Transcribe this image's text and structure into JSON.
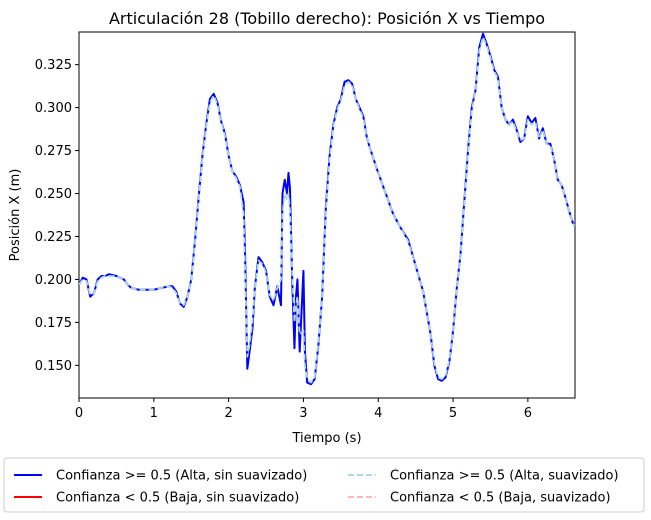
{
  "chart_data": {
    "type": "line",
    "title": "Articulación 28 (Tobillo derecho): Posición X vs Tiempo",
    "xlabel": "Tiempo (s)",
    "ylabel": "Posición X (m)",
    "xlim": [
      0,
      6.63
    ],
    "ylim": [
      0.131,
      0.344
    ],
    "xticks": [
      0,
      1,
      2,
      3,
      4,
      5,
      6
    ],
    "xtick_labels": [
      "0",
      "1",
      "2",
      "3",
      "4",
      "5",
      "6"
    ],
    "yticks": [
      0.15,
      0.175,
      0.2,
      0.225,
      0.25,
      0.275,
      0.3,
      0.325
    ],
    "ytick_labels": [
      "0.150",
      "0.175",
      "0.200",
      "0.225",
      "0.250",
      "0.275",
      "0.300",
      "0.325"
    ],
    "grid": false,
    "legend_position": "bottom-center",
    "legend": [
      {
        "label": "Confianza >= 0.5 (Alta, sin suavizado)",
        "color": "#0000ff",
        "style": "solid"
      },
      {
        "label": "Confianza < 0.5 (Baja, sin suavizado)",
        "color": "#ff0000",
        "style": "solid"
      },
      {
        "label": "Confianza >= 0.5 (Alta, suavizado)",
        "color": "#add8e6",
        "style": "dashed"
      },
      {
        "label": "Confianza < 0.5 (Baja, suavizado)",
        "color": "#ffb6c1",
        "style": "dashed"
      }
    ],
    "series": [
      {
        "name": "Confianza >= 0.5 (Alta, sin suavizado)",
        "color": "#0000ff",
        "style": "solid",
        "x": [
          0,
          0.05,
          0.1,
          0.15,
          0.2,
          0.25,
          0.3,
          0.35,
          0.4,
          0.5,
          0.6,
          0.65,
          0.7,
          0.8,
          0.9,
          1.0,
          1.1,
          1.2,
          1.25,
          1.3,
          1.35,
          1.4,
          1.45,
          1.5,
          1.55,
          1.6,
          1.65,
          1.7,
          1.75,
          1.8,
          1.85,
          1.9,
          1.95,
          2.0,
          2.05,
          2.1,
          2.15,
          2.2,
          2.22,
          2.25,
          2.28,
          2.32,
          2.35,
          2.4,
          2.45,
          2.5,
          2.55,
          2.6,
          2.65,
          2.7,
          2.72,
          2.75,
          2.78,
          2.8,
          2.82,
          2.85,
          2.88,
          2.9,
          2.92,
          2.95,
          3.0,
          3.02,
          3.05,
          3.1,
          3.15,
          3.2,
          3.25,
          3.3,
          3.35,
          3.4,
          3.45,
          3.5,
          3.55,
          3.6,
          3.65,
          3.7,
          3.75,
          3.8,
          3.85,
          3.9,
          4.0,
          4.1,
          4.2,
          4.3,
          4.4,
          4.5,
          4.6,
          4.7,
          4.75,
          4.8,
          4.85,
          4.9,
          4.95,
          5.0,
          5.05,
          5.1,
          5.15,
          5.2,
          5.25,
          5.3,
          5.35,
          5.4,
          5.45,
          5.5,
          5.55,
          5.6,
          5.65,
          5.7,
          5.75,
          5.8,
          5.85,
          5.9,
          5.95,
          6.0,
          6.05,
          6.1,
          6.15,
          6.2,
          6.25,
          6.3,
          6.35,
          6.4,
          6.45,
          6.5,
          6.55,
          6.6,
          6.63
        ],
        "y": [
          0.197,
          0.201,
          0.2,
          0.19,
          0.192,
          0.2,
          0.202,
          0.202,
          0.203,
          0.202,
          0.2,
          0.197,
          0.195,
          0.194,
          0.194,
          0.194,
          0.195,
          0.196,
          0.196,
          0.193,
          0.186,
          0.184,
          0.19,
          0.2,
          0.222,
          0.248,
          0.272,
          0.29,
          0.305,
          0.308,
          0.303,
          0.292,
          0.285,
          0.272,
          0.263,
          0.26,
          0.255,
          0.245,
          0.215,
          0.148,
          0.158,
          0.172,
          0.195,
          0.213,
          0.21,
          0.205,
          0.19,
          0.185,
          0.196,
          0.185,
          0.25,
          0.258,
          0.25,
          0.262,
          0.253,
          0.2,
          0.16,
          0.19,
          0.2,
          0.158,
          0.205,
          0.158,
          0.14,
          0.139,
          0.142,
          0.162,
          0.19,
          0.242,
          0.272,
          0.29,
          0.3,
          0.305,
          0.315,
          0.316,
          0.314,
          0.305,
          0.3,
          0.295,
          0.282,
          0.275,
          0.262,
          0.25,
          0.238,
          0.23,
          0.223,
          0.208,
          0.193,
          0.168,
          0.15,
          0.142,
          0.141,
          0.143,
          0.152,
          0.17,
          0.195,
          0.215,
          0.245,
          0.275,
          0.3,
          0.31,
          0.335,
          0.343,
          0.337,
          0.33,
          0.322,
          0.318,
          0.3,
          0.293,
          0.29,
          0.293,
          0.287,
          0.28,
          0.282,
          0.295,
          0.291,
          0.294,
          0.282,
          0.288,
          0.279,
          0.279,
          0.27,
          0.258,
          0.255,
          0.248,
          0.24,
          0.233,
          0.231
        ]
      },
      {
        "name": "Confianza >= 0.5 (Alta, suavizado)",
        "color": "#add8e6",
        "style": "dashed",
        "x": [
          0,
          0.05,
          0.1,
          0.15,
          0.2,
          0.25,
          0.3,
          0.35,
          0.4,
          0.5,
          0.6,
          0.65,
          0.7,
          0.8,
          0.9,
          1.0,
          1.1,
          1.2,
          1.25,
          1.3,
          1.35,
          1.4,
          1.45,
          1.5,
          1.55,
          1.6,
          1.65,
          1.7,
          1.75,
          1.8,
          1.85,
          1.9,
          1.95,
          2.0,
          2.05,
          2.1,
          2.15,
          2.2,
          2.22,
          2.25,
          2.28,
          2.32,
          2.35,
          2.4,
          2.45,
          2.5,
          2.55,
          2.6,
          2.65,
          2.7,
          2.72,
          2.75,
          2.78,
          2.8,
          2.82,
          2.85,
          2.88,
          2.9,
          2.92,
          2.95,
          3.0,
          3.02,
          3.05,
          3.1,
          3.15,
          3.2,
          3.25,
          3.3,
          3.35,
          3.4,
          3.45,
          3.5,
          3.55,
          3.6,
          3.65,
          3.7,
          3.75,
          3.8,
          3.85,
          3.9,
          4.0,
          4.1,
          4.2,
          4.3,
          4.4,
          4.5,
          4.6,
          4.7,
          4.75,
          4.8,
          4.85,
          4.9,
          4.95,
          5.0,
          5.05,
          5.1,
          5.15,
          5.2,
          5.25,
          5.3,
          5.35,
          5.4,
          5.45,
          5.5,
          5.55,
          5.6,
          5.65,
          5.7,
          5.75,
          5.8,
          5.85,
          5.9,
          5.95,
          6.0,
          6.05,
          6.1,
          6.15,
          6.2,
          6.25,
          6.3,
          6.35,
          6.4,
          6.45,
          6.5,
          6.55,
          6.6,
          6.63
        ],
        "y": [
          0.197,
          0.2,
          0.199,
          0.191,
          0.192,
          0.199,
          0.201,
          0.202,
          0.202,
          0.202,
          0.2,
          0.197,
          0.195,
          0.194,
          0.194,
          0.194,
          0.195,
          0.196,
          0.195,
          0.192,
          0.186,
          0.185,
          0.19,
          0.2,
          0.221,
          0.247,
          0.271,
          0.289,
          0.303,
          0.307,
          0.302,
          0.292,
          0.284,
          0.272,
          0.263,
          0.259,
          0.254,
          0.238,
          0.205,
          0.155,
          0.162,
          0.176,
          0.195,
          0.211,
          0.209,
          0.204,
          0.191,
          0.188,
          0.195,
          0.2,
          0.238,
          0.25,
          0.246,
          0.25,
          0.24,
          0.205,
          0.175,
          0.185,
          0.19,
          0.168,
          0.17,
          0.15,
          0.142,
          0.14,
          0.143,
          0.163,
          0.19,
          0.24,
          0.27,
          0.289,
          0.299,
          0.304,
          0.313,
          0.315,
          0.313,
          0.305,
          0.299,
          0.294,
          0.282,
          0.275,
          0.262,
          0.25,
          0.238,
          0.23,
          0.222,
          0.208,
          0.193,
          0.168,
          0.151,
          0.143,
          0.142,
          0.144,
          0.153,
          0.17,
          0.195,
          0.215,
          0.244,
          0.274,
          0.298,
          0.31,
          0.333,
          0.341,
          0.336,
          0.329,
          0.321,
          0.317,
          0.3,
          0.293,
          0.29,
          0.292,
          0.286,
          0.281,
          0.282,
          0.293,
          0.29,
          0.292,
          0.282,
          0.287,
          0.279,
          0.278,
          0.27,
          0.258,
          0.255,
          0.248,
          0.24,
          0.233,
          0.231
        ]
      }
    ]
  }
}
